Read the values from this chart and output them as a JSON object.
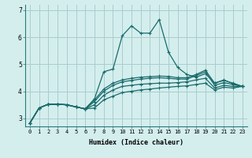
{
  "xlabel": "Humidex (Indice chaleur)",
  "background_color": "#d4eeee",
  "grid_color": "#aacccc",
  "line_color": "#1a6b6b",
  "xlim": [
    -0.5,
    23.5
  ],
  "ylim": [
    2.7,
    7.2
  ],
  "yticks": [
    3,
    4,
    5,
    6,
    7
  ],
  "xticks": [
    0,
    1,
    2,
    3,
    4,
    5,
    6,
    7,
    8,
    9,
    10,
    11,
    12,
    13,
    14,
    15,
    16,
    17,
    18,
    19,
    20,
    21,
    22,
    23
  ],
  "lines": [
    [
      2.82,
      3.38,
      3.52,
      3.52,
      3.5,
      3.42,
      3.35,
      3.38,
      3.68,
      3.82,
      3.95,
      4.0,
      4.05,
      4.08,
      4.12,
      4.15,
      4.18,
      4.2,
      4.25,
      4.3,
      4.05,
      4.15,
      4.12,
      4.18
    ],
    [
      2.82,
      3.38,
      3.52,
      3.52,
      3.5,
      3.42,
      3.35,
      3.5,
      3.85,
      4.05,
      4.18,
      4.22,
      4.26,
      4.28,
      4.3,
      4.3,
      4.32,
      4.35,
      4.42,
      4.48,
      4.12,
      4.22,
      4.18,
      4.18
    ],
    [
      2.82,
      3.38,
      3.52,
      3.52,
      3.5,
      3.42,
      3.35,
      3.62,
      4.0,
      4.22,
      4.35,
      4.4,
      4.45,
      4.48,
      4.5,
      4.48,
      4.45,
      4.45,
      4.58,
      4.72,
      4.22,
      4.32,
      4.25,
      4.18
    ],
    [
      2.82,
      3.38,
      3.52,
      3.52,
      3.5,
      3.42,
      3.35,
      3.68,
      4.08,
      4.3,
      4.42,
      4.48,
      4.52,
      4.54,
      4.56,
      4.55,
      4.5,
      4.5,
      4.62,
      4.78,
      4.3,
      4.4,
      4.3,
      4.18
    ],
    [
      2.82,
      3.38,
      3.52,
      3.52,
      3.5,
      3.42,
      3.35,
      3.72,
      4.72,
      4.82,
      6.05,
      6.42,
      6.15,
      6.15,
      6.65,
      5.45,
      4.88,
      4.62,
      4.52,
      4.65,
      4.3,
      4.42,
      4.28,
      4.18
    ]
  ]
}
